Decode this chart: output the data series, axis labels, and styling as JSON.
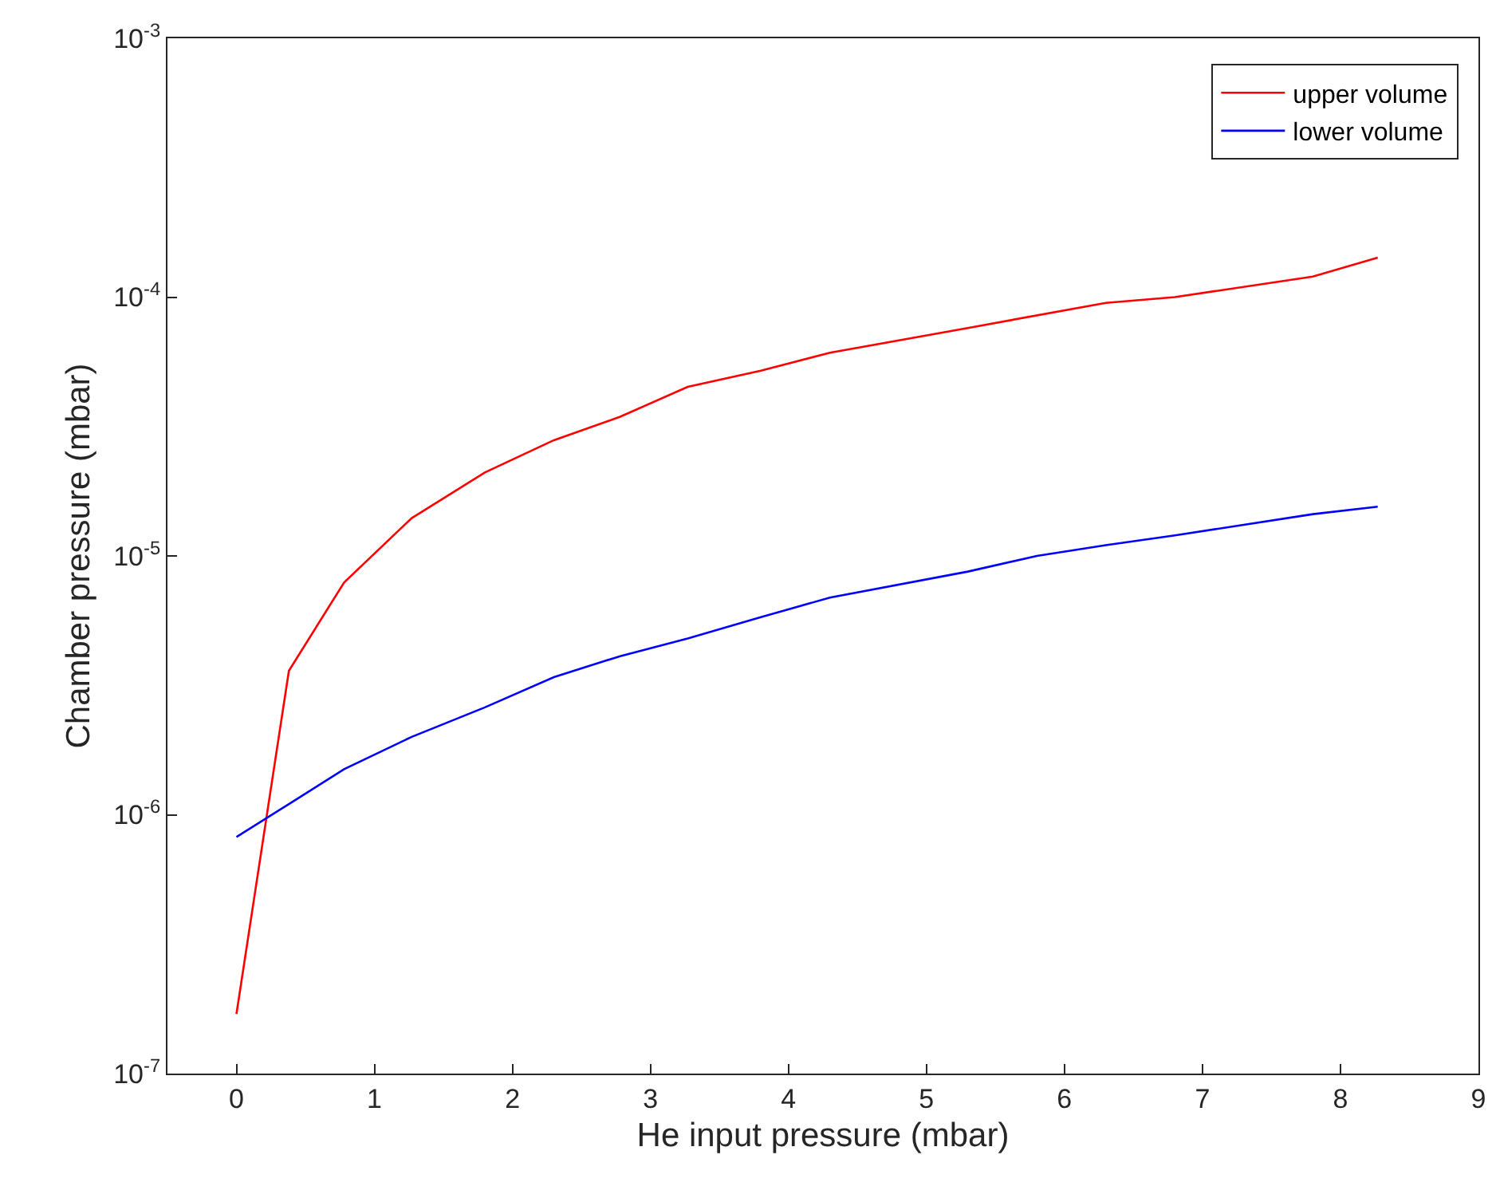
{
  "chart_data": {
    "type": "line",
    "xlabel": "He input pressure (mbar)",
    "ylabel": "Chamber pressure (mbar)",
    "log": "y",
    "legend": "top right",
    "marker": "none",
    "line_style": "solid",
    "xlim": [
      -0.5,
      9
    ],
    "xticks": [
      0,
      1,
      2,
      3,
      4,
      5,
      6,
      7,
      8,
      9
    ],
    "ylim": [
      1e-07,
      0.001
    ],
    "yticks": [
      {
        "value": 1e-07,
        "label": "10$^{-7}$"
      },
      {
        "value": 1e-06,
        "label": "10$^{-6}$"
      },
      {
        "value": 1e-05,
        "label": "10$^{-5}$"
      },
      {
        "value": 0.0001,
        "label": "10$^{-4}$"
      },
      {
        "value": 0.001,
        "label": "10$^{-3}$"
      }
    ],
    "series": [
      {
        "name": "upper volume",
        "color": "#ff0000",
        "x": [
          0,
          0.38,
          0.78,
          1.27,
          1.8,
          2.3,
          2.78,
          3.27,
          3.8,
          4.3,
          5.3,
          6.3,
          6.8,
          7.8,
          8.27
        ],
        "values": [
          1.7e-07,
          3.6e-06,
          7.9e-06,
          1.4e-05,
          2.1e-05,
          2.8e-05,
          3.45e-05,
          4.5e-05,
          5.2e-05,
          6.1e-05,
          7.6e-05,
          9.5e-05,
          0.0001,
          0.00012,
          0.000142
        ]
      },
      {
        "name": "lower volume",
        "color": "#0000ff",
        "x": [
          0,
          0.38,
          0.78,
          1.27,
          1.8,
          2.3,
          2.78,
          3.27,
          3.8,
          4.3,
          5.3,
          5.8,
          6.3,
          6.8,
          7.8,
          8.27
        ],
        "values": [
          8.2e-07,
          1.1e-06,
          1.5e-06,
          2e-06,
          2.6e-06,
          3.4e-06,
          4.1e-06,
          4.8e-06,
          5.8e-06,
          6.9e-06,
          8.7e-06,
          1e-05,
          1.1e-05,
          1.2e-05,
          1.45e-05,
          1.55e-05
        ]
      }
    ]
  }
}
